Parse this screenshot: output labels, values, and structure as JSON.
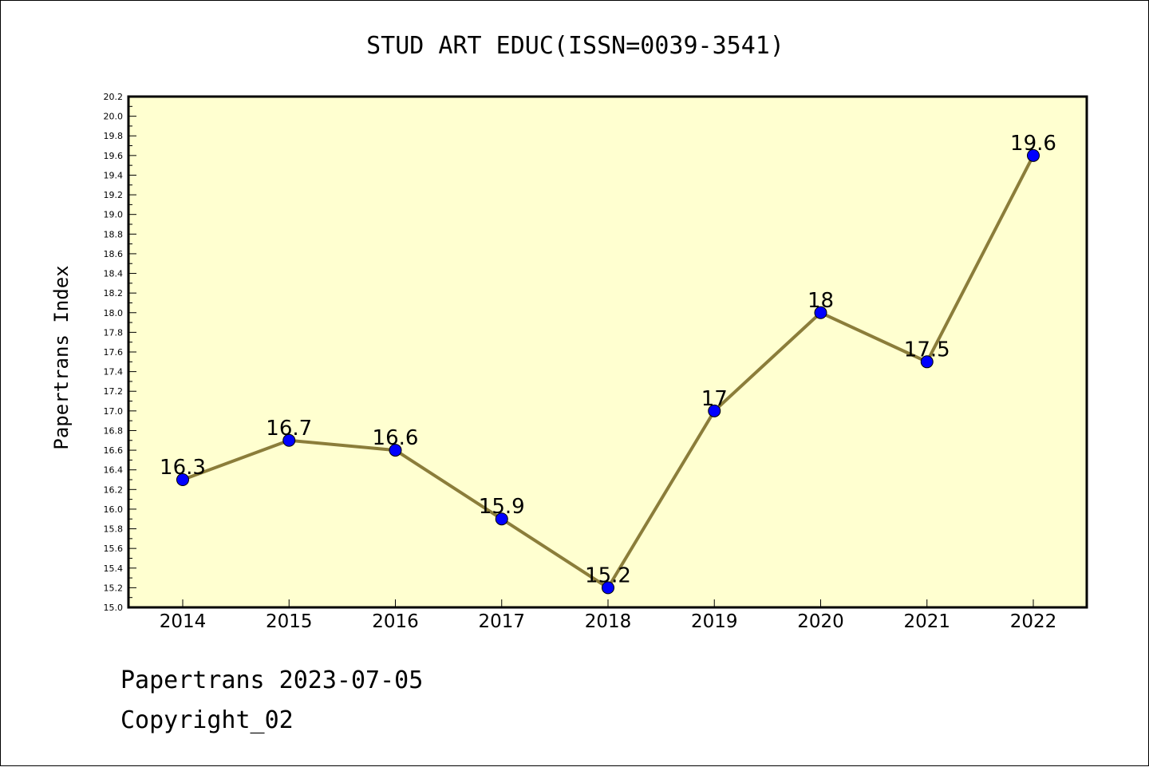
{
  "chart_data": {
    "type": "line",
    "title": "STUD ART EDUC(ISSN=0039-3541)",
    "xlabel": "",
    "ylabel": "Papertrans Index",
    "categories": [
      "2014",
      "2015",
      "2016",
      "2017",
      "2018",
      "2019",
      "2020",
      "2021",
      "2022"
    ],
    "series": [
      {
        "values": [
          16.3,
          16.7,
          16.6,
          15.9,
          15.2,
          17,
          18,
          17.5,
          19.6
        ],
        "labels": [
          "16.3",
          "16.7",
          "16.6",
          "15.9",
          "15.2",
          "17",
          "18",
          "17.5",
          "19.6"
        ]
      }
    ],
    "ylim": [
      15.0,
      20.2
    ],
    "yticks": [
      "15.0",
      "15.2",
      "15.4",
      "15.6",
      "15.8",
      "16.0",
      "16.2",
      "16.4",
      "16.6",
      "16.8",
      "17.0",
      "17.2",
      "17.4",
      "17.6",
      "17.8",
      "18.0",
      "18.2",
      "18.4",
      "18.6",
      "18.8",
      "19.0",
      "19.2",
      "19.4",
      "19.6",
      "19.8",
      "20.0",
      "20.2"
    ],
    "grid": false,
    "colors": {
      "plot_background": "#ffffd0",
      "line": "#8b7d3a",
      "marker": "#0000ff"
    }
  },
  "footer": {
    "line1": "Papertrans 2023-07-05",
    "line2": "Copyright_02"
  }
}
